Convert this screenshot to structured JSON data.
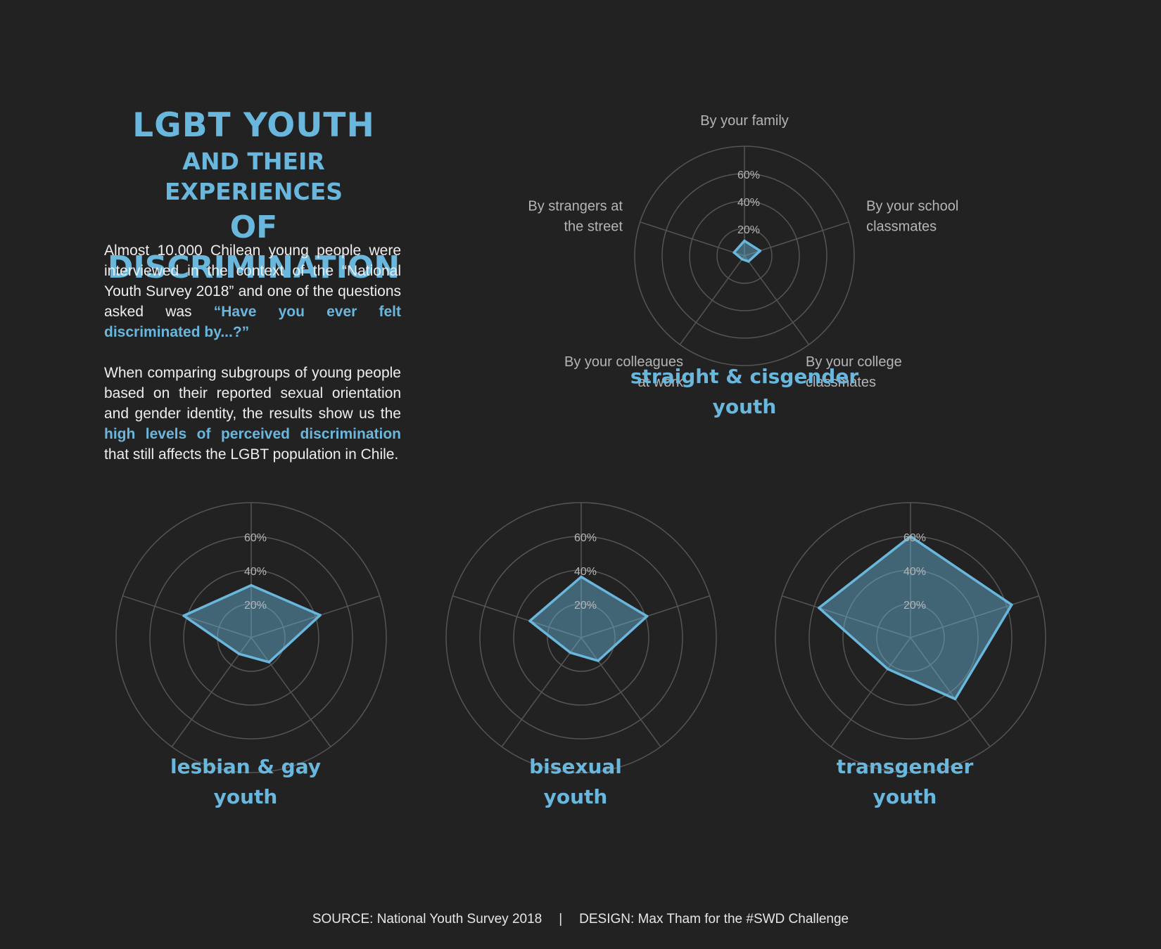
{
  "title": {
    "line1": "LGBT YOUTH",
    "line2": "AND THEIR EXPERIENCES",
    "line3": "OF DISCRIMINATION"
  },
  "intro": {
    "p1_before": "Almost 10.000 Chilean young people were interviewed in the context of the “National Youth Survey 2018” and one of the questions asked was ",
    "p1_highlight": "“Have you ever felt discriminated by...?”",
    "p2_before": "When comparing subgroups of young people based on their reported sexual orientation and gender identity, the results show us the ",
    "p2_highlight": "high levels of perceived discrimination",
    "p2_after": " that still affects the LGBT population in Chile."
  },
  "footer": {
    "source": "SOURCE: National Youth Survey 2018",
    "separator": "|",
    "design": "DESIGN: Max Tham for the #SWD Challenge"
  },
  "colors": {
    "background": "#222222",
    "accent": "#6ab7dd",
    "grid": "#555555",
    "label": "#b5b5b5"
  },
  "chart_data": [
    {
      "type": "radar",
      "title": "straight & cisgender youth",
      "title_lines": [
        "straight & cisgender",
        "youth"
      ],
      "axes": [
        "By your family",
        "By your school classmates",
        "By your college classmates",
        "By your colleagues at work",
        "By strangers at the street"
      ],
      "axis_label_lines": [
        [
          "By your family"
        ],
        [
          "By your school",
          "classmates"
        ],
        [
          "By your college",
          "classmates"
        ],
        [
          "By your colleagues",
          "at work"
        ],
        [
          "By strangers at",
          "the street"
        ]
      ],
      "ticks": [
        "20%",
        "40%",
        "60%"
      ],
      "rmax": 80,
      "values": [
        11,
        12,
        5,
        3,
        8
      ]
    },
    {
      "type": "radar",
      "title": "lesbian & gay youth",
      "title_lines": [
        "lesbian & gay",
        "youth"
      ],
      "axes": [
        "By your family",
        "By your school classmates",
        "By your college classmates",
        "By your colleagues at work",
        "By strangers at the street"
      ],
      "ticks": [
        "20%",
        "40%",
        "60%"
      ],
      "rmax": 80,
      "values": [
        31,
        43,
        18,
        12,
        42
      ]
    },
    {
      "type": "radar",
      "title": "bisexual youth",
      "title_lines": [
        "bisexual",
        "youth"
      ],
      "axes": [
        "By your family",
        "By your school classmates",
        "By your college classmates",
        "By your colleagues at work",
        "By strangers at the street"
      ],
      "ticks": [
        "20%",
        "40%",
        "60%"
      ],
      "rmax": 80,
      "values": [
        36,
        41,
        17,
        11,
        32
      ]
    },
    {
      "type": "radar",
      "title": "transgender youth",
      "title_lines": [
        "transgender",
        "youth"
      ],
      "axes": [
        "By your family",
        "By your school classmates",
        "By your college classmates",
        "By your colleagues at work",
        "By strangers at the street"
      ],
      "ticks": [
        "20%",
        "40%",
        "60%"
      ],
      "rmax": 80,
      "values": [
        60,
        63,
        45,
        23,
        57
      ]
    }
  ]
}
